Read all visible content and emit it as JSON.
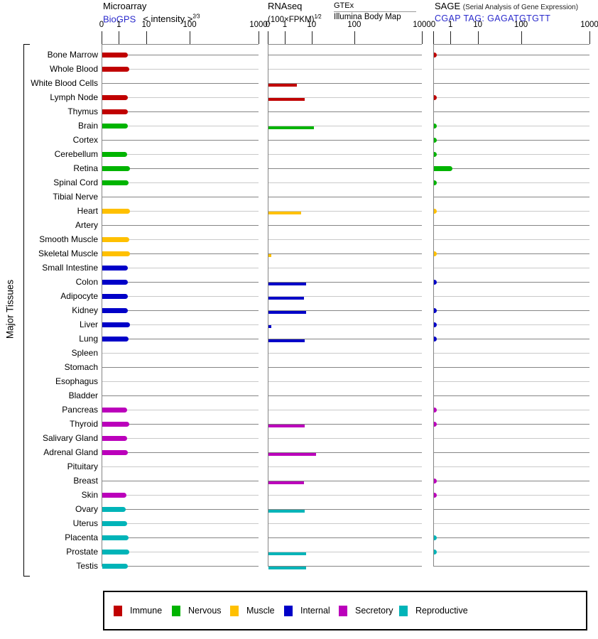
{
  "header": {
    "microarray": {
      "title": "Microarray",
      "source": "BioGPS",
      "unit": "< intensity >",
      "exponent": "2⁄3"
    },
    "rnaseq": {
      "title": "RNAseq",
      "unit": "(100×FPKM)",
      "exponent": "1⁄2",
      "source": "GTEx",
      "source2": "Illumina Body Map"
    },
    "sage": {
      "title": "SAGE",
      "subtitle": "(Serial Analysis of Gene Expression)",
      "source": "CGAP TAG: GAGATGTGTT"
    }
  },
  "y_axis_label": "Major Tissues",
  "link_color": "#2B2BCC",
  "legend": [
    {
      "label": "Immune",
      "color": "#C00000"
    },
    {
      "label": "Nervous",
      "color": "#00B400"
    },
    {
      "label": "Muscle",
      "color": "#FFC000"
    },
    {
      "label": "Internal",
      "color": "#0000C8"
    },
    {
      "label": "Secretory",
      "color": "#BB00BB"
    },
    {
      "label": "Reproductive",
      "color": "#00B4B8"
    }
  ],
  "chart_data": {
    "type": "bar",
    "orientation": "horizontal",
    "x_ticks": [
      "0",
      "1",
      "10",
      "100",
      "1000"
    ],
    "x_scale": "power scale (value^(1/5)); the '0' tick sits at the position of 0.1",
    "grid": "alternating row lines: even rows #858585, odd rows #C9C9C9",
    "panels": [
      "Microarray BioGPS <intensity>^(2/3)",
      "RNAseq (100×FPKM)^(1/2) GTEx / Illumina Body Map",
      "SAGE CGAP TAG: GAGATGTGTT"
    ],
    "tissues": [
      {
        "name": "Bone Marrow",
        "group": "Immune",
        "microarray": 2.3,
        "rnaseq": 0,
        "sage": 0.15
      },
      {
        "name": "Whole Blood",
        "group": "Immune",
        "microarray": 2.6,
        "rnaseq": 0,
        "sage": 0
      },
      {
        "name": "White Blood Cells",
        "group": "Immune",
        "microarray": 0,
        "rnaseq": 3.1,
        "sage": 0
      },
      {
        "name": "Lymph Node",
        "group": "Immune",
        "microarray": 2.2,
        "rnaseq": 5.6,
        "sage": 0.15
      },
      {
        "name": "Thymus",
        "group": "Immune",
        "microarray": 2.2,
        "rnaseq": 0,
        "sage": 0
      },
      {
        "name": "Brain",
        "group": "Nervous",
        "microarray": 2.3,
        "rnaseq": 11,
        "sage": 0.15
      },
      {
        "name": "Cortex",
        "group": "Nervous",
        "microarray": 0,
        "rnaseq": 0,
        "sage": 0.15
      },
      {
        "name": "Cerebellum",
        "group": "Nervous",
        "microarray": 2.1,
        "rnaseq": 0,
        "sage": 0.15
      },
      {
        "name": "Retina",
        "group": "Nervous",
        "microarray": 2.8,
        "rnaseq": 0,
        "sage": 1.1
      },
      {
        "name": "Spinal Cord",
        "group": "Nervous",
        "microarray": 2.4,
        "rnaseq": 0,
        "sage": 0.15
      },
      {
        "name": "Tibial Nerve",
        "group": "Nervous",
        "microarray": 0,
        "rnaseq": 0,
        "sage": 0
      },
      {
        "name": "Heart",
        "group": "Muscle",
        "microarray": 2.7,
        "rnaseq": 4.3,
        "sage": 0.15
      },
      {
        "name": "Artery",
        "group": "Muscle",
        "microarray": 0,
        "rnaseq": 0,
        "sage": 0
      },
      {
        "name": "Smooth Muscle",
        "group": "Muscle",
        "microarray": 2.5,
        "rnaseq": 0,
        "sage": 0
      },
      {
        "name": "Skeletal Muscle",
        "group": "Muscle",
        "microarray": 2.7,
        "rnaseq": 0.15,
        "sage": 0.15
      },
      {
        "name": "Small Intestine",
        "group": "Internal",
        "microarray": 2.2,
        "rnaseq": 0,
        "sage": 0
      },
      {
        "name": "Colon",
        "group": "Internal",
        "microarray": 2.3,
        "rnaseq": 6.3,
        "sage": 0.15
      },
      {
        "name": "Adipocyte",
        "group": "Internal",
        "microarray": 2.3,
        "rnaseq": 5.5,
        "sage": 0
      },
      {
        "name": "Kidney",
        "group": "Internal",
        "microarray": 2.2,
        "rnaseq": 6.3,
        "sage": 0.15
      },
      {
        "name": "Liver",
        "group": "Internal",
        "microarray": 2.8,
        "rnaseq": 0.15,
        "sage": 0.15
      },
      {
        "name": "Lung",
        "group": "Internal",
        "microarray": 2.4,
        "rnaseq": 5.6,
        "sage": 0.15
      },
      {
        "name": "Spleen",
        "group": "Internal",
        "microarray": 0,
        "rnaseq": 0,
        "sage": 0
      },
      {
        "name": "Stomach",
        "group": "Internal",
        "microarray": 0,
        "rnaseq": 0,
        "sage": 0
      },
      {
        "name": "Esophagus",
        "group": "Internal",
        "microarray": 0,
        "rnaseq": 0,
        "sage": 0
      },
      {
        "name": "Bladder",
        "group": "Internal",
        "microarray": 0,
        "rnaseq": 0,
        "sage": 0
      },
      {
        "name": "Pancreas",
        "group": "Secretory",
        "microarray": 2.1,
        "rnaseq": 0,
        "sage": 0.15
      },
      {
        "name": "Thyroid",
        "group": "Secretory",
        "microarray": 2.6,
        "rnaseq": 5.6,
        "sage": 0.15
      },
      {
        "name": "Salivary Gland",
        "group": "Secretory",
        "microarray": 2.1,
        "rnaseq": 0,
        "sage": 0
      },
      {
        "name": "Adrenal Gland",
        "group": "Secretory",
        "microarray": 2.2,
        "rnaseq": 13,
        "sage": 0
      },
      {
        "name": "Pituitary",
        "group": "Secretory",
        "microarray": 0,
        "rnaseq": 0,
        "sage": 0
      },
      {
        "name": "Breast",
        "group": "Secretory",
        "microarray": 0,
        "rnaseq": 5.3,
        "sage": 0.15
      },
      {
        "name": "Skin",
        "group": "Secretory",
        "microarray": 2.0,
        "rnaseq": 0,
        "sage": 0.15
      },
      {
        "name": "Ovary",
        "group": "Reproductive",
        "microarray": 1.9,
        "rnaseq": 5.6,
        "sage": 0
      },
      {
        "name": "Uterus",
        "group": "Reproductive",
        "microarray": 2.1,
        "rnaseq": 0,
        "sage": 0
      },
      {
        "name": "Placenta",
        "group": "Reproductive",
        "microarray": 2.4,
        "rnaseq": 0,
        "sage": 0.15
      },
      {
        "name": "Prostate",
        "group": "Reproductive",
        "microarray": 2.6,
        "rnaseq": 6.3,
        "sage": 0.15
      },
      {
        "name": "Testis",
        "group": "Reproductive",
        "microarray": 2.3,
        "rnaseq": 6.3,
        "sage": 0
      }
    ]
  }
}
